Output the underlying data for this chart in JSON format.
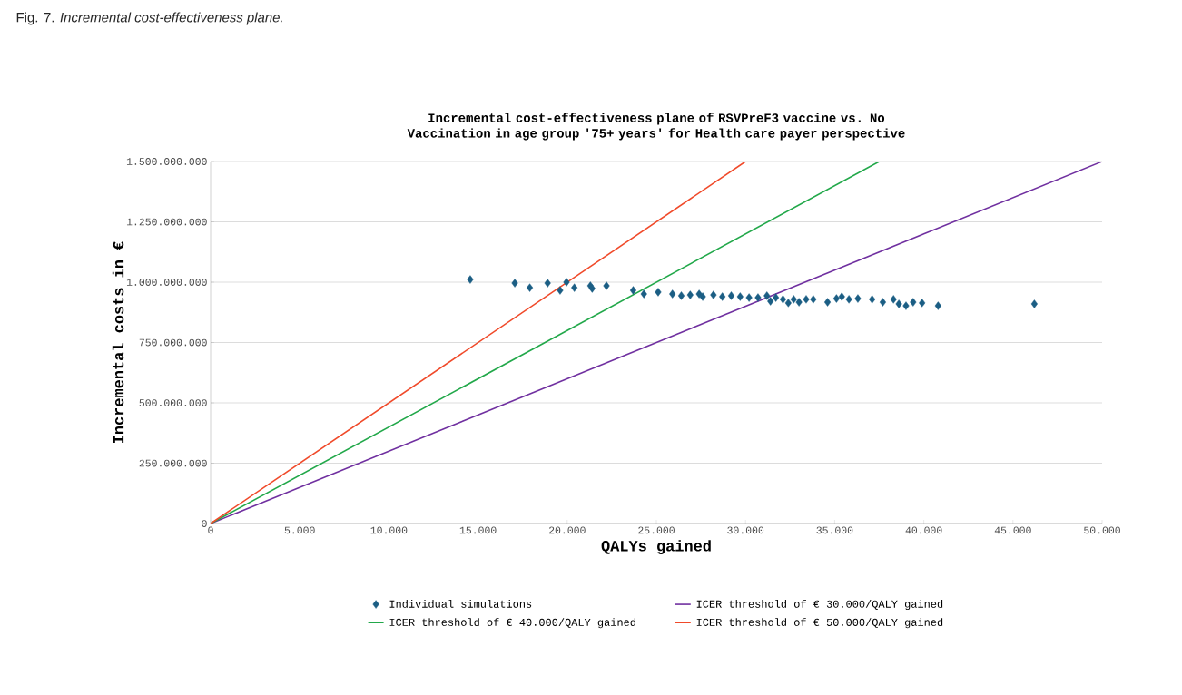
{
  "chart_data": {
    "type": "scatter",
    "title": "Incremental cost-effectiveness plane of RSVPreF3 vaccine vs. No Vaccination in age group '75+ years' for Health care payer perspective",
    "xlabel": "QALYs gained",
    "ylabel": "Incremental costs in €",
    "annotations": [
      "Fig. 7. *Incremental cost-effectiveness plane.*"
    ],
    "xlim": [
      0,
      50000
    ],
    "ylim": [
      0,
      1500000000
    ],
    "xticks": [
      0,
      {
        "value": 5000,
        "label": "5.000"
      },
      {
        "value": 10000,
        "label": "10.000"
      },
      {
        "value": 15000,
        "label": "15.000"
      },
      {
        "value": 20000,
        "label": "20.000"
      },
      {
        "value": 25000,
        "label": "25.000"
      },
      {
        "value": 30000,
        "label": "30.000"
      },
      {
        "value": 35000,
        "label": "35.000"
      },
      {
        "value": 40000,
        "label": "40.000"
      },
      {
        "value": 45000,
        "label": "45.000"
      },
      {
        "value": 50000,
        "label": "50.000"
      }
    ],
    "yticks": [
      0,
      {
        "value": 250000000,
        "label": "250.000.000"
      },
      {
        "value": 500000000,
        "label": "500.000.000"
      },
      {
        "value": 750000000,
        "label": "750.000.000"
      },
      {
        "value": 1000000000,
        "label": "1.000.000.000"
      },
      {
        "value": 1250000000,
        "label": "1.250.000.000"
      },
      {
        "value": 1500000000,
        "label": "1.500.000.000"
      }
    ],
    "grid": "y",
    "legend": "bottom",
    "series": [
      {
        "name": "Individual simulations",
        "marker": "diamond",
        "color": "#1b5e84",
        "x": [
          14560,
          17060,
          17900,
          18900,
          19600,
          19960,
          20400,
          21300,
          21400,
          22200,
          23700,
          24300,
          25100,
          25900,
          26400,
          26900,
          27400,
          27600,
          28200,
          28700,
          29200,
          29700,
          30200,
          30700,
          31200,
          31400,
          31700,
          32100,
          32400,
          32700,
          33000,
          33400,
          33800,
          34600,
          35100,
          35400,
          35800,
          36300,
          37100,
          37700,
          38300,
          38600,
          39000,
          39400,
          39900,
          40800,
          46200
        ],
        "values": [
          1011000000,
          996000000,
          977000000,
          996000000,
          966000000,
          1000000000,
          977000000,
          985000000,
          974000000,
          985000000,
          966000000,
          951000000,
          959000000,
          951000000,
          944000000,
          947000000,
          951000000,
          940000000,
          947000000,
          940000000,
          944000000,
          940000000,
          936000000,
          936000000,
          944000000,
          921000000,
          936000000,
          929000000,
          914000000,
          929000000,
          917000000,
          929000000,
          929000000,
          917000000,
          932000000,
          940000000,
          929000000,
          932000000,
          929000000,
          917000000,
          929000000,
          910000000,
          902000000,
          917000000,
          914000000,
          902000000,
          910000000
        ]
      },
      {
        "name": "ICER threshold of € 30.000/QALY gained",
        "type": "line",
        "color": "#7030a0",
        "x": [
          0,
          50000
        ],
        "values": [
          0,
          1500000000
        ]
      },
      {
        "name": "ICER threshold of € 40.000/QALY gained",
        "type": "line",
        "color": "#22a84a",
        "x": [
          0,
          37500
        ],
        "values": [
          0,
          1500000000
        ]
      },
      {
        "name": "ICER threshold of € 50.000/QALY gained",
        "type": "line",
        "color": "#f04a2a",
        "x": [
          0,
          30000
        ],
        "values": [
          0,
          1500000000
        ]
      }
    ]
  }
}
